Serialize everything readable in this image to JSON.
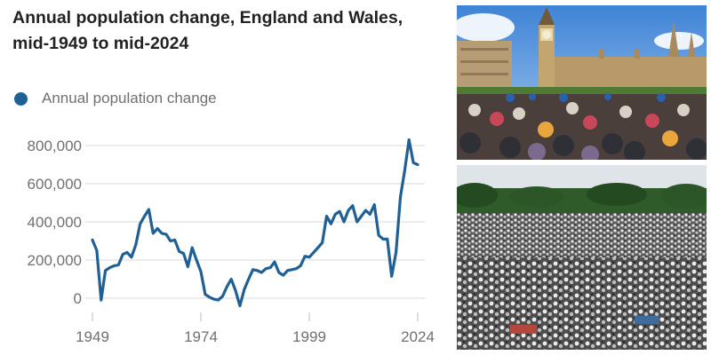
{
  "title": "Annual population change, England and Wales, mid-1949 to mid-2024",
  "photos": {
    "top": "Westminster crowd photo",
    "bottom": "Park prayer gathering photo"
  },
  "colors": {
    "line": "#206095",
    "grid": "#d9d9d9",
    "axis_text": "#707070",
    "title": "#222222"
  },
  "chart_data": {
    "type": "line",
    "title": "Annual population change, England and Wales, mid-1949 to mid-2024",
    "xlabel": "",
    "ylabel": "",
    "xlim": [
      1949,
      2024
    ],
    "ylim": [
      -50000,
      850000
    ],
    "xticks": [
      1949,
      1974,
      1999,
      2024
    ],
    "xtick_labels": [
      "1949",
      "1974",
      "1999",
      "2024"
    ],
    "yticks": [
      0,
      200000,
      400000,
      600000,
      800000
    ],
    "ytick_labels": [
      "0",
      "200,000",
      "400,000",
      "600,000",
      "800,000"
    ],
    "grid": true,
    "legend_position": "top-left",
    "series": [
      {
        "name": "Annual population change",
        "color": "#206095",
        "x": [
          1949,
          1950,
          1951,
          1952,
          1953,
          1954,
          1955,
          1956,
          1957,
          1958,
          1959,
          1960,
          1961,
          1962,
          1963,
          1964,
          1965,
          1966,
          1967,
          1968,
          1969,
          1970,
          1971,
          1972,
          1973,
          1974,
          1975,
          1976,
          1977,
          1978,
          1979,
          1980,
          1981,
          1982,
          1983,
          1984,
          1985,
          1986,
          1987,
          1988,
          1989,
          1990,
          1991,
          1992,
          1993,
          1994,
          1995,
          1996,
          1997,
          1998,
          1999,
          2000,
          2001,
          2002,
          2003,
          2004,
          2005,
          2006,
          2007,
          2008,
          2009,
          2010,
          2011,
          2012,
          2013,
          2014,
          2015,
          2016,
          2017,
          2018,
          2019,
          2020,
          2021,
          2022,
          2023,
          2024
        ],
        "values": [
          305000,
          250000,
          -10000,
          145000,
          160000,
          170000,
          175000,
          230000,
          240000,
          215000,
          280000,
          390000,
          430000,
          465000,
          340000,
          365000,
          340000,
          335000,
          300000,
          305000,
          245000,
          235000,
          165000,
          265000,
          200000,
          140000,
          20000,
          5000,
          -5000,
          -10000,
          10000,
          60000,
          100000,
          40000,
          -40000,
          45000,
          100000,
          150000,
          145000,
          135000,
          155000,
          160000,
          190000,
          135000,
          120000,
          145000,
          150000,
          155000,
          170000,
          220000,
          215000,
          240000,
          265000,
          290000,
          430000,
          390000,
          440000,
          455000,
          400000,
          460000,
          485000,
          400000,
          430000,
          460000,
          440000,
          490000,
          330000,
          310000,
          310000,
          115000,
          240000,
          530000,
          670000,
          830000,
          710000,
          700000
        ]
      }
    ]
  }
}
